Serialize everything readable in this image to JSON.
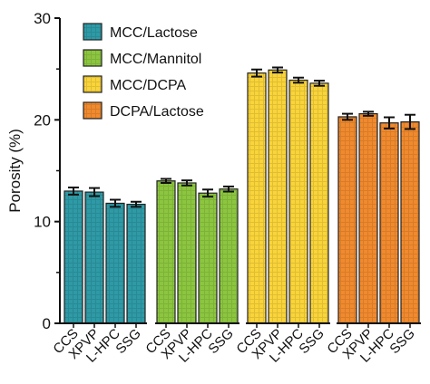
{
  "chart_data": {
    "type": "bar",
    "title": "",
    "xlabel": "",
    "ylabel": "Porosity (%)",
    "ylim": [
      0,
      30
    ],
    "yticks": [
      0,
      10,
      20,
      30
    ],
    "grid": false,
    "legend_position": "top-left",
    "categories": [
      "CCS",
      "XPVP",
      "L-HPC",
      "SSG"
    ],
    "series": [
      {
        "name": "MCC/Lactose",
        "color": "#2E9AA6",
        "values": [
          13.0,
          12.9,
          11.8,
          11.7
        ],
        "errors": [
          0.35,
          0.4,
          0.35,
          0.25
        ]
      },
      {
        "name": "MCC/Mannitol",
        "color": "#8CC63F",
        "values": [
          14.0,
          13.8,
          12.8,
          13.2
        ],
        "errors": [
          0.2,
          0.25,
          0.35,
          0.25
        ]
      },
      {
        "name": "MCC/DCPA",
        "color": "#F9D43A",
        "values": [
          24.6,
          24.9,
          23.9,
          23.6
        ],
        "errors": [
          0.35,
          0.25,
          0.25,
          0.25
        ]
      },
      {
        "name": "DCPA/Lactose",
        "color": "#F08A2E",
        "values": [
          20.3,
          20.6,
          19.7,
          19.8
        ],
        "errors": [
          0.3,
          0.2,
          0.55,
          0.7
        ]
      }
    ]
  }
}
